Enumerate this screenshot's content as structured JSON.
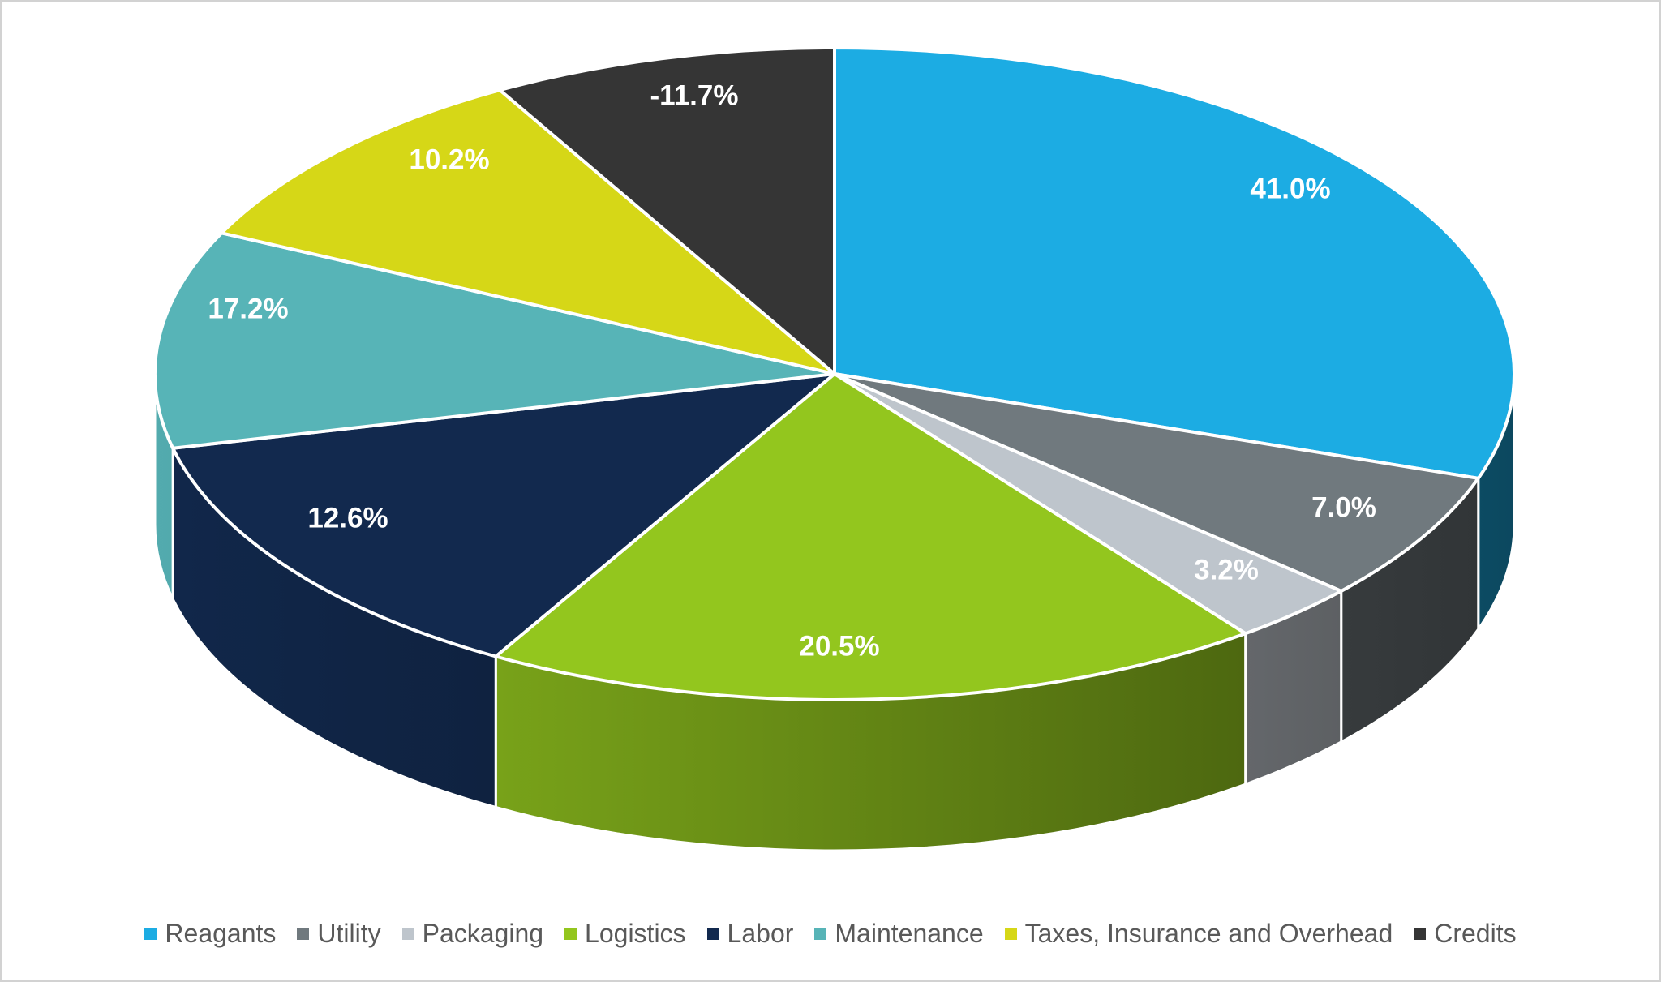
{
  "chart_data": {
    "type": "pie",
    "projection": "3d",
    "title": "",
    "legend_position": "bottom",
    "categories": [
      "Reagants",
      "Utility",
      "Packaging",
      "Logistics",
      "Labor",
      "Maintenance",
      "Taxes, Insurance and Overhead",
      "Credits"
    ],
    "values": [
      41.0,
      7.0,
      3.2,
      20.5,
      12.6,
      17.2,
      10.2,
      -11.7
    ],
    "labels": [
      "41.0%",
      "7.0%",
      "3.2%",
      "20.5%",
      "12.6%",
      "17.2%",
      "10.2%",
      "-11.7%"
    ],
    "colors": [
      "#1CACE3",
      "#70797E",
      "#BEC5CC",
      "#93C61E",
      "#12294E",
      "#57B4B7",
      "#D6D717",
      "#353535"
    ],
    "label_text_color": "#FFFFFF",
    "legend_text_color": "#595959",
    "background": "#FFFFFF",
    "border_color": "#D2D2D2"
  }
}
